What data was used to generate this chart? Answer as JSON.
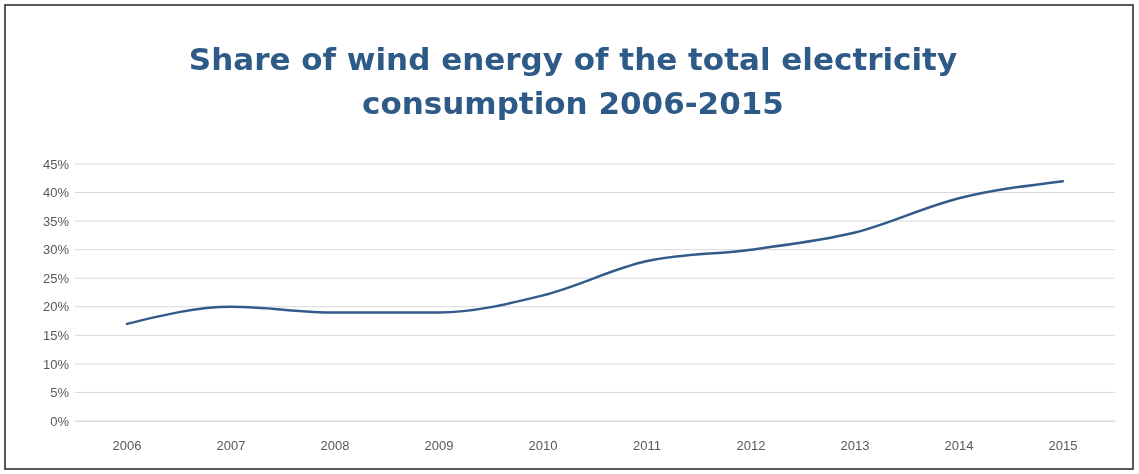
{
  "chart_data": {
    "type": "line",
    "title": "Share of wind energy of the total electricity consumption 2006-2015",
    "categories": [
      "2006",
      "2007",
      "2008",
      "2009",
      "2010",
      "2011",
      "2012",
      "2013",
      "2014",
      "2015"
    ],
    "series": [
      {
        "color": "#335b8a",
        "values": [
          17,
          20,
          19,
          19,
          22,
          28,
          30,
          33,
          39,
          42
        ]
      }
    ],
    "ylim": [
      0,
      45
    ],
    "yticks": [
      {
        "value": 0,
        "label": "0%"
      },
      {
        "value": 5,
        "label": "5%"
      },
      {
        "value": 10,
        "label": "10%"
      },
      {
        "value": 15,
        "label": "15%"
      },
      {
        "value": 20,
        "label": "20%"
      },
      {
        "value": 25,
        "label": "25%"
      },
      {
        "value": 30,
        "label": "30%"
      },
      {
        "value": 35,
        "label": "35%"
      },
      {
        "value": 40,
        "label": "40%"
      },
      {
        "value": 45,
        "label": "45%"
      }
    ],
    "grid": "y",
    "marker": "none",
    "line_style": "solid"
  }
}
